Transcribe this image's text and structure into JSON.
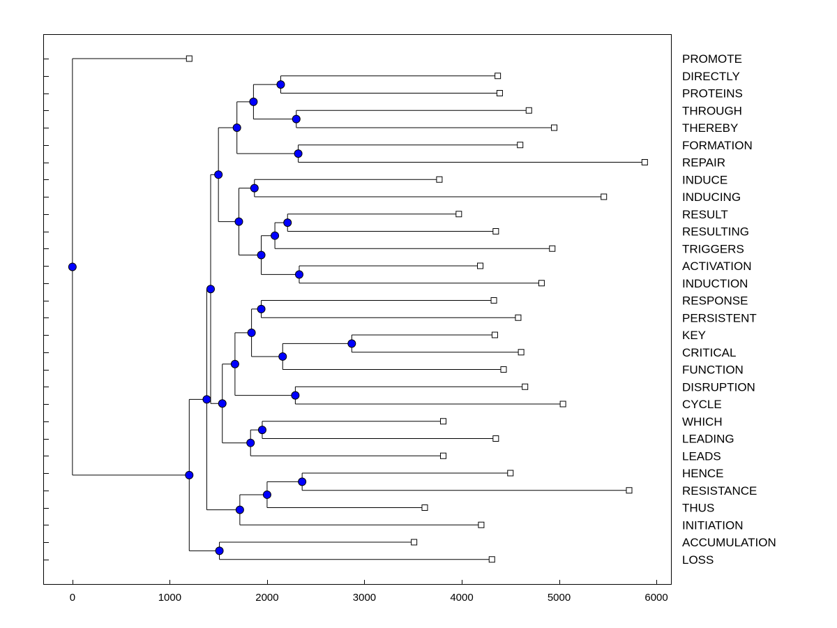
{
  "chart_data": {
    "type": "dendrogram",
    "title": "",
    "xlabel": "",
    "ylabel": "",
    "xlim": [
      -300,
      6150
    ],
    "xticks": [
      0,
      1000,
      2000,
      3000,
      4000,
      5000,
      6000
    ],
    "xtick_labels": [
      "0",
      "1000",
      "2000",
      "3000",
      "4000",
      "5000",
      "6000"
    ],
    "leaves": [
      {
        "label": "PROMOTE",
        "distance": 1200
      },
      {
        "label": "DIRECTLY",
        "distance": 4370
      },
      {
        "label": "PROTEINS",
        "distance": 4390
      },
      {
        "label": "THROUGH",
        "distance": 4690
      },
      {
        "label": "THEREBY",
        "distance": 4950
      },
      {
        "label": "FORMATION",
        "distance": 4600
      },
      {
        "label": "REPAIR",
        "distance": 5880
      },
      {
        "label": "INDUCE",
        "distance": 3770
      },
      {
        "label": "INDUCING",
        "distance": 5460
      },
      {
        "label": "RESULT",
        "distance": 3970
      },
      {
        "label": "RESULTING",
        "distance": 4350
      },
      {
        "label": "TRIGGERS",
        "distance": 4930
      },
      {
        "label": "ACTIVATION",
        "distance": 4190
      },
      {
        "label": "INDUCTION",
        "distance": 4820
      },
      {
        "label": "RESPONSE",
        "distance": 4330
      },
      {
        "label": "PERSISTENT",
        "distance": 4580
      },
      {
        "label": "KEY",
        "distance": 4340
      },
      {
        "label": "CRITICAL",
        "distance": 4610
      },
      {
        "label": "FUNCTION",
        "distance": 4430
      },
      {
        "label": "DISRUPTION",
        "distance": 4650
      },
      {
        "label": "CYCLE",
        "distance": 5040
      },
      {
        "label": "WHICH",
        "distance": 3810
      },
      {
        "label": "LEADING",
        "distance": 4350
      },
      {
        "label": "LEADS",
        "distance": 3810
      },
      {
        "label": "HENCE",
        "distance": 4500
      },
      {
        "label": "RESISTANCE",
        "distance": 5720
      },
      {
        "label": "THUS",
        "distance": 3620
      },
      {
        "label": "INITIATION",
        "distance": 4200
      },
      {
        "label": "ACCUMULATION",
        "distance": 3510
      },
      {
        "label": "LOSS",
        "distance": 4310
      }
    ],
    "merges": [
      {
        "id": "n1",
        "x": 2140,
        "children": [
          "L1",
          "L2"
        ]
      },
      {
        "id": "n2",
        "x": 2300,
        "children": [
          "L3",
          "L4"
        ]
      },
      {
        "id": "n3",
        "x": 1860,
        "children": [
          "n1",
          "n2"
        ]
      },
      {
        "id": "n4",
        "x": 2320,
        "children": [
          "L5",
          "L6"
        ]
      },
      {
        "id": "n5",
        "x": 1690,
        "children": [
          "n3",
          "n4"
        ]
      },
      {
        "id": "n6",
        "x": 1870,
        "children": [
          "L7",
          "L8"
        ]
      },
      {
        "id": "n7",
        "x": 2210,
        "children": [
          "L9",
          "L10"
        ]
      },
      {
        "id": "n8",
        "x": 2080,
        "children": [
          "n7",
          "L11"
        ]
      },
      {
        "id": "n9",
        "x": 2330,
        "children": [
          "L12",
          "L13"
        ]
      },
      {
        "id": "n10",
        "x": 1940,
        "children": [
          "n8",
          "n9"
        ]
      },
      {
        "id": "n11",
        "x": 1710,
        "children": [
          "n6",
          "n10"
        ]
      },
      {
        "id": "n12",
        "x": 1500,
        "children": [
          "n5",
          "n11"
        ]
      },
      {
        "id": "n13",
        "x": 1940,
        "children": [
          "L14",
          "L15"
        ]
      },
      {
        "id": "n14",
        "x": 2870,
        "children": [
          "L16",
          "L17"
        ]
      },
      {
        "id": "n15",
        "x": 2160,
        "children": [
          "n14",
          "L18"
        ]
      },
      {
        "id": "n16",
        "x": 1840,
        "children": [
          "n13",
          "n15"
        ]
      },
      {
        "id": "n17",
        "x": 2290,
        "children": [
          "L19",
          "L20"
        ]
      },
      {
        "id": "n18",
        "x": 1670,
        "children": [
          "n16",
          "n17"
        ]
      },
      {
        "id": "n19",
        "x": 1950,
        "children": [
          "L21",
          "L22"
        ]
      },
      {
        "id": "n20",
        "x": 1830,
        "children": [
          "n19",
          "L23"
        ]
      },
      {
        "id": "n21",
        "x": 1540,
        "children": [
          "n18",
          "n20"
        ]
      },
      {
        "id": "n22",
        "x": 1420,
        "children": [
          "n12",
          "n21"
        ]
      },
      {
        "id": "n23",
        "x": 2360,
        "children": [
          "L24",
          "L25"
        ]
      },
      {
        "id": "n24",
        "x": 2000,
        "children": [
          "n23",
          "L26"
        ]
      },
      {
        "id": "n25",
        "x": 1720,
        "children": [
          "n24",
          "L27"
        ]
      },
      {
        "id": "n26",
        "x": 1380,
        "children": [
          "n22",
          "n25"
        ]
      },
      {
        "id": "n27",
        "x": 1510,
        "children": [
          "L28",
          "L29"
        ]
      },
      {
        "id": "n28",
        "x": 1200,
        "children": [
          "n26",
          "n27"
        ]
      },
      {
        "id": "n29",
        "x": 0,
        "children": [
          "L0",
          "n28"
        ]
      }
    ],
    "colors": {
      "node_fill": "#0000ff",
      "line": "#000000",
      "leaf_marker": "#ffffff",
      "background": "#ffffff"
    }
  }
}
